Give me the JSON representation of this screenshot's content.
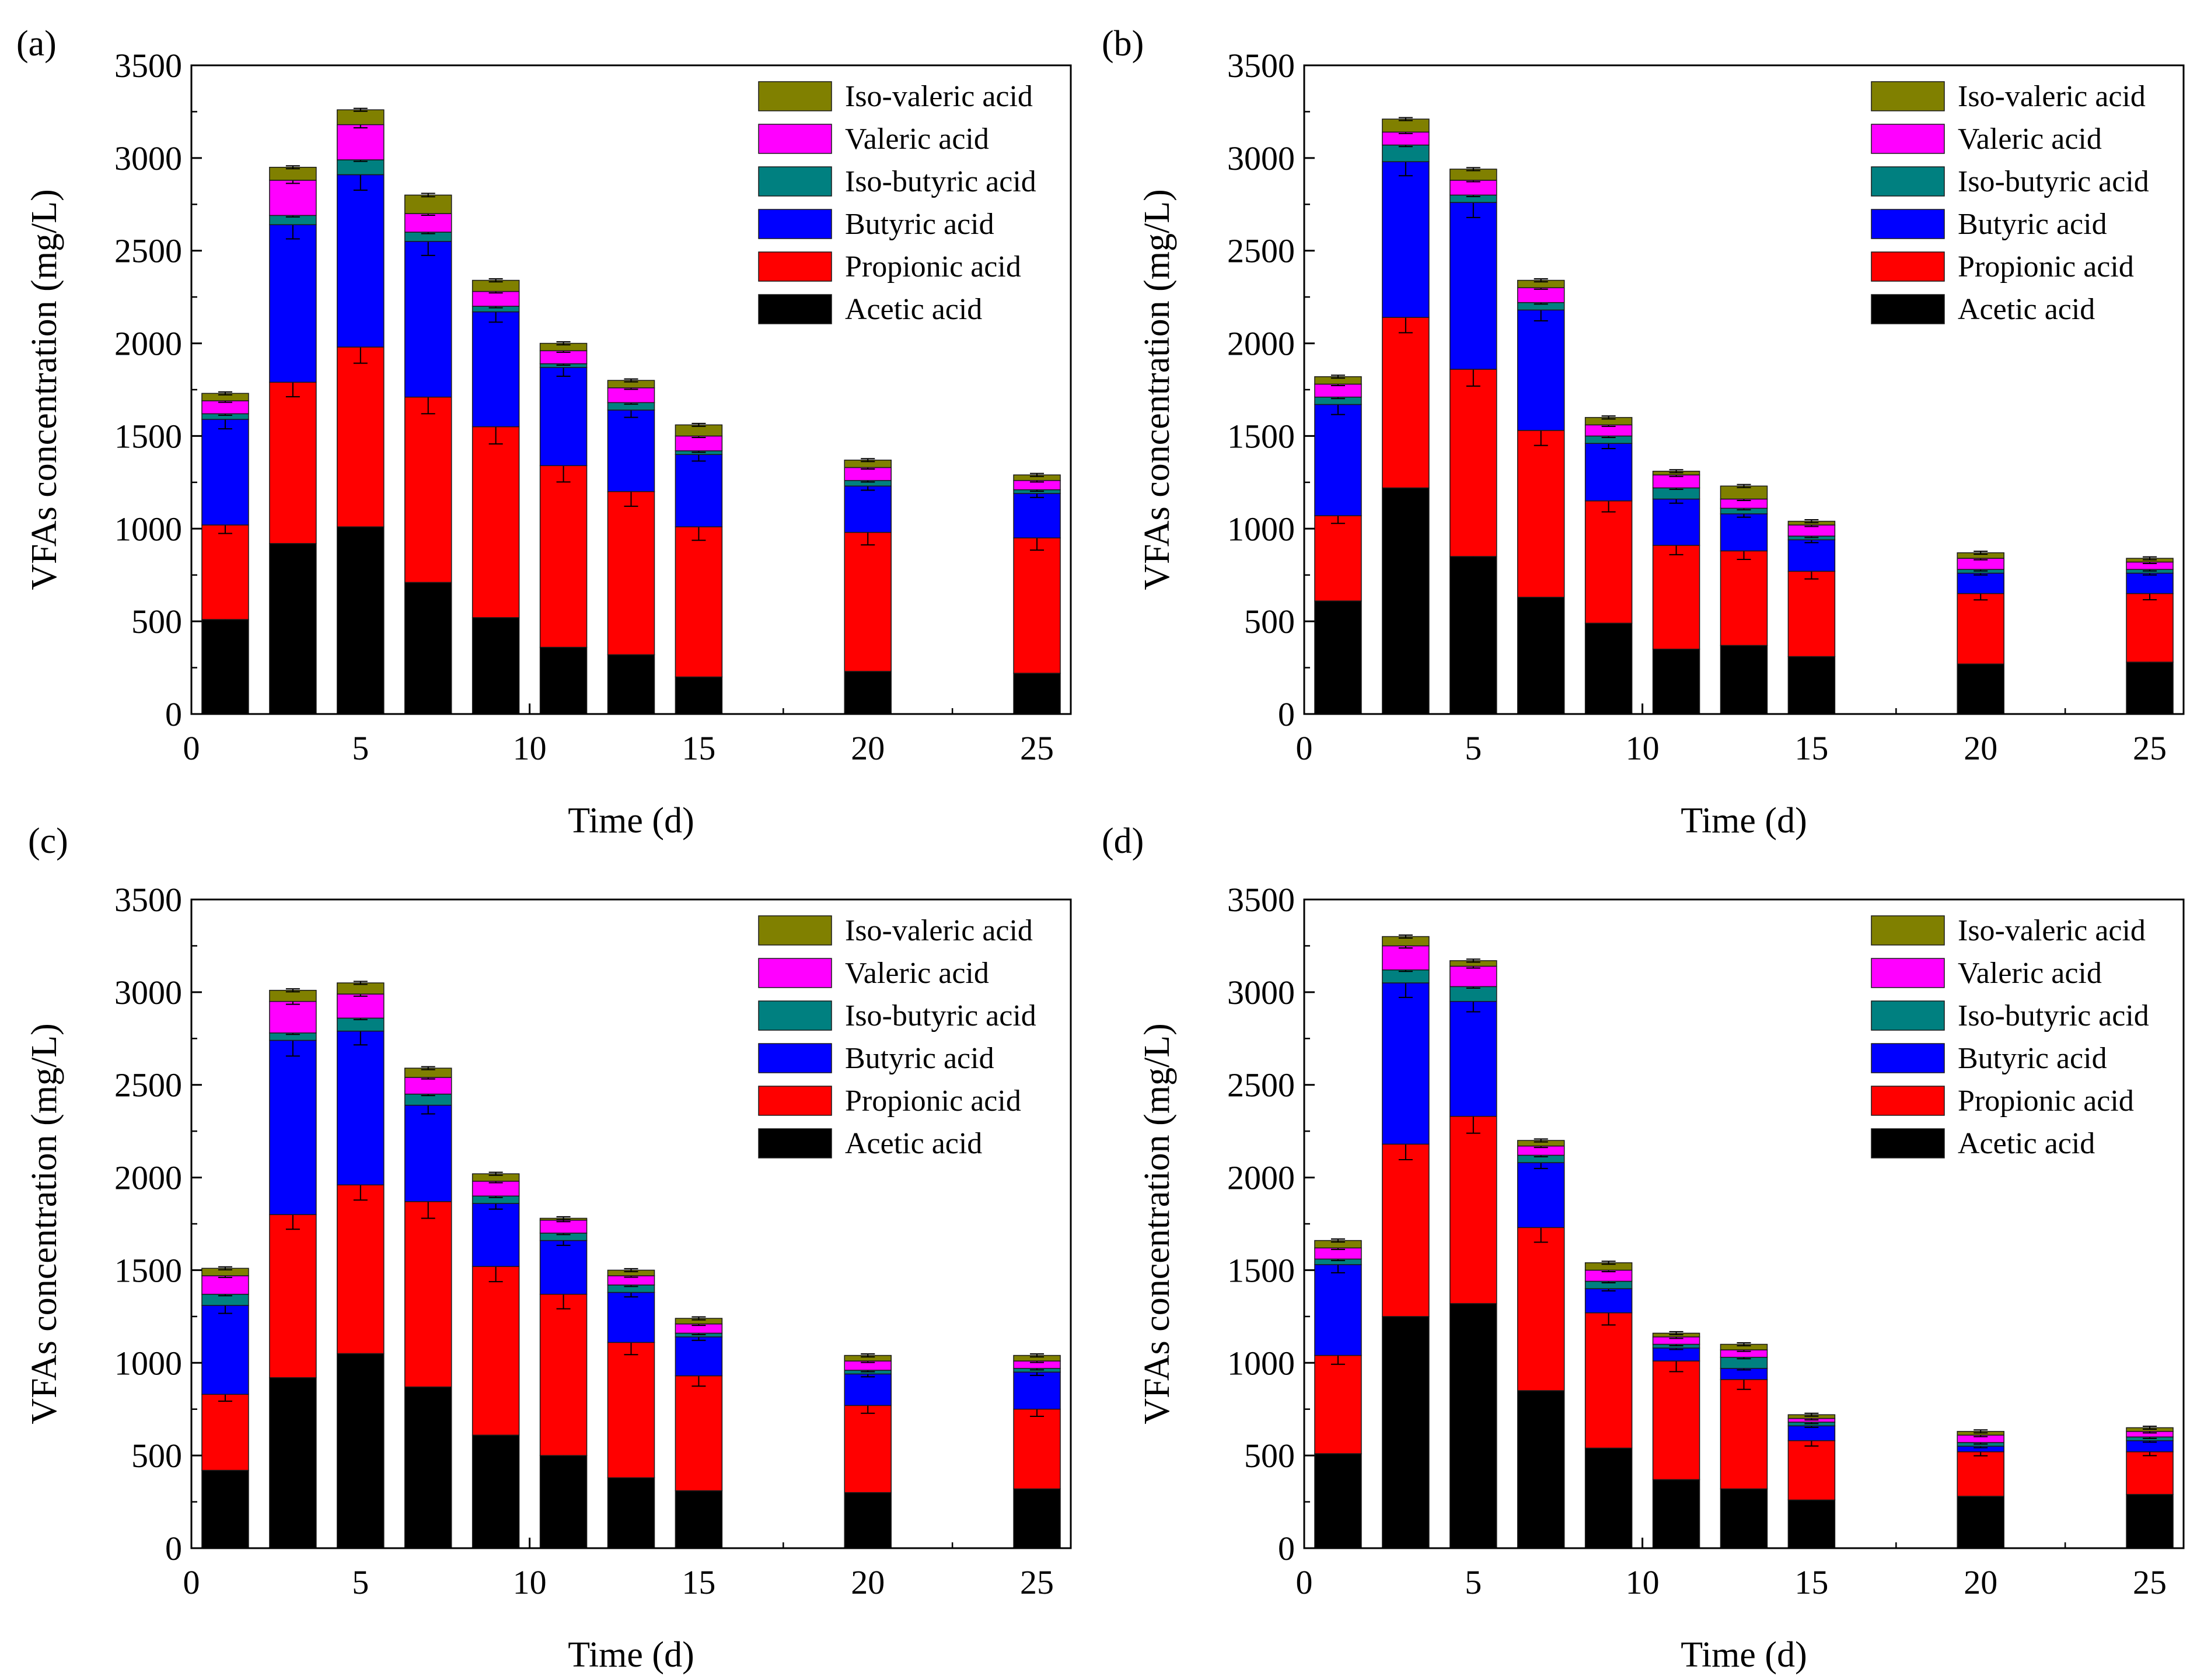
{
  "figure": {
    "panel_labels": [
      "(a)",
      "(b)",
      "(c)",
      "(d)"
    ]
  },
  "chart_data": [
    {
      "type": "bar",
      "stacked": true,
      "panel_label": "(a)",
      "xlabel": "Time (d)",
      "ylabel": "VFAs concentration (mg/L)",
      "xlim": [
        0,
        26
      ],
      "ylim": [
        0,
        3500
      ],
      "xticks": [
        "0",
        "5",
        "10",
        "15",
        "20",
        "25"
      ],
      "yticks": [
        "0",
        "500",
        "1000",
        "1500",
        "2000",
        "2500",
        "3000",
        "3500"
      ],
      "legend_position": "top-right",
      "x": [
        1,
        3,
        5,
        7,
        9,
        11,
        13,
        15,
        20,
        25
      ],
      "series": [
        {
          "name": "Acetic acid",
          "color": "#000000",
          "values": [
            510,
            920,
            1010,
            710,
            520,
            360,
            320,
            200,
            230,
            220
          ]
        },
        {
          "name": "Propionic acid",
          "color": "#ff0000",
          "values": [
            510,
            870,
            970,
            1000,
            1030,
            980,
            880,
            810,
            750,
            730
          ]
        },
        {
          "name": "Butyric acid",
          "color": "#0000ff",
          "values": [
            570,
            850,
            930,
            840,
            620,
            530,
            440,
            390,
            250,
            240
          ]
        },
        {
          "name": "Iso-butyric acid",
          "color": "#008080",
          "values": [
            30,
            50,
            80,
            50,
            30,
            20,
            40,
            20,
            30,
            20
          ]
        },
        {
          "name": "Valeric acid",
          "color": "#ff00ff",
          "values": [
            70,
            190,
            190,
            100,
            80,
            70,
            80,
            80,
            70,
            50
          ]
        },
        {
          "name": "Iso-valeric acid",
          "color": "#808000",
          "values": [
            40,
            70,
            80,
            100,
            60,
            40,
            40,
            60,
            40,
            30
          ]
        }
      ]
    },
    {
      "type": "bar",
      "stacked": true,
      "panel_label": "(b)",
      "xlabel": "Time (d)",
      "ylabel": "VFAs concentration (mg/L)",
      "xlim": [
        0,
        26
      ],
      "ylim": [
        0,
        3500
      ],
      "xticks": [
        "0",
        "5",
        "10",
        "15",
        "20",
        "25"
      ],
      "yticks": [
        "0",
        "500",
        "1000",
        "1500",
        "2000",
        "2500",
        "3000",
        "3500"
      ],
      "legend_position": "top-right",
      "x": [
        1,
        3,
        5,
        7,
        9,
        11,
        13,
        15,
        20,
        25
      ],
      "series": [
        {
          "name": "Acetic acid",
          "color": "#000000",
          "values": [
            610,
            1220,
            850,
            630,
            490,
            350,
            370,
            310,
            270,
            280
          ]
        },
        {
          "name": "Propionic acid",
          "color": "#ff0000",
          "values": [
            460,
            920,
            1010,
            900,
            660,
            560,
            510,
            460,
            380,
            370
          ]
        },
        {
          "name": "Butyric acid",
          "color": "#0000ff",
          "values": [
            600,
            840,
            900,
            650,
            310,
            250,
            200,
            170,
            110,
            110
          ]
        },
        {
          "name": "Iso-butyric acid",
          "color": "#008080",
          "values": [
            40,
            90,
            40,
            40,
            40,
            60,
            30,
            20,
            20,
            20
          ]
        },
        {
          "name": "Valeric acid",
          "color": "#ff00ff",
          "values": [
            70,
            70,
            80,
            80,
            60,
            70,
            50,
            60,
            60,
            40
          ]
        },
        {
          "name": "Iso-valeric acid",
          "color": "#808000",
          "values": [
            40,
            70,
            60,
            40,
            40,
            20,
            70,
            20,
            30,
            20
          ]
        }
      ]
    },
    {
      "type": "bar",
      "stacked": true,
      "panel_label": "(c)",
      "xlabel": "Time (d)",
      "ylabel": "VFAs concentration (mg/L)",
      "xlim": [
        0,
        26
      ],
      "ylim": [
        0,
        3500
      ],
      "xticks": [
        "0",
        "5",
        "10",
        "15",
        "20",
        "25"
      ],
      "yticks": [
        "0",
        "500",
        "1000",
        "1500",
        "2000",
        "2500",
        "3000",
        "3500"
      ],
      "legend_position": "top-right",
      "x": [
        1,
        3,
        5,
        7,
        9,
        11,
        13,
        15,
        20,
        25
      ],
      "series": [
        {
          "name": "Acetic acid",
          "color": "#000000",
          "values": [
            420,
            920,
            1050,
            870,
            610,
            500,
            380,
            310,
            300,
            320
          ]
        },
        {
          "name": "Propionic acid",
          "color": "#ff0000",
          "values": [
            410,
            880,
            910,
            1000,
            910,
            870,
            730,
            620,
            470,
            430
          ]
        },
        {
          "name": "Butyric acid",
          "color": "#0000ff",
          "values": [
            480,
            940,
            830,
            520,
            340,
            290,
            270,
            210,
            170,
            200
          ]
        },
        {
          "name": "Iso-butyric acid",
          "color": "#008080",
          "values": [
            60,
            40,
            70,
            60,
            40,
            40,
            40,
            20,
            20,
            20
          ]
        },
        {
          "name": "Valeric acid",
          "color": "#ff00ff",
          "values": [
            100,
            170,
            130,
            90,
            80,
            70,
            50,
            50,
            50,
            40
          ]
        },
        {
          "name": "Iso-valeric acid",
          "color": "#808000",
          "values": [
            40,
            60,
            60,
            50,
            40,
            10,
            30,
            30,
            30,
            30
          ]
        }
      ]
    },
    {
      "type": "bar",
      "stacked": true,
      "panel_label": "(d)",
      "xlabel": "Time (d)",
      "ylabel": "VFAs concentration (mg/L)",
      "xlim": [
        0,
        26
      ],
      "ylim": [
        0,
        3500
      ],
      "xticks": [
        "0",
        "5",
        "10",
        "15",
        "20",
        "25"
      ],
      "yticks": [
        "0",
        "500",
        "1000",
        "1500",
        "2000",
        "2500",
        "3000",
        "3500"
      ],
      "legend_position": "top-right",
      "x": [
        1,
        3,
        5,
        7,
        9,
        11,
        13,
        15,
        20,
        25
      ],
      "series": [
        {
          "name": "Acetic acid",
          "color": "#000000",
          "values": [
            510,
            1250,
            1320,
            850,
            540,
            370,
            320,
            260,
            280,
            290
          ]
        },
        {
          "name": "Propionic acid",
          "color": "#ff0000",
          "values": [
            530,
            930,
            1010,
            880,
            730,
            640,
            590,
            320,
            240,
            230
          ]
        },
        {
          "name": "Butyric acid",
          "color": "#0000ff",
          "values": [
            490,
            870,
            620,
            350,
            130,
            70,
            60,
            80,
            30,
            60
          ]
        },
        {
          "name": "Iso-butyric acid",
          "color": "#008080",
          "values": [
            30,
            70,
            80,
            40,
            40,
            20,
            60,
            20,
            20,
            20
          ]
        },
        {
          "name": "Valeric acid",
          "color": "#ff00ff",
          "values": [
            60,
            130,
            110,
            50,
            60,
            40,
            40,
            20,
            40,
            30
          ]
        },
        {
          "name": "Iso-valeric acid",
          "color": "#808000",
          "values": [
            40,
            50,
            30,
            30,
            40,
            20,
            30,
            20,
            20,
            20
          ]
        }
      ]
    }
  ]
}
